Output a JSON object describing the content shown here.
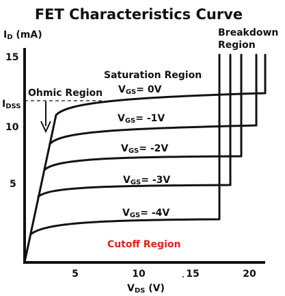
{
  "title": "FET Characteristics Curve",
  "y_axis": {
    "main": "I",
    "sub": "D",
    "unit": " (mA)"
  },
  "x_axis": {
    "main": "V",
    "sub": "DS",
    "unit": " (V)"
  },
  "idss_label": {
    "main": "I",
    "sub": "DSS"
  },
  "regions": {
    "ohmic": "Ohmic Region",
    "saturation": "Saturation Region",
    "breakdown_line1": "Breakdown",
    "breakdown_line2": "Region",
    "cutoff": "Cutoff Region"
  },
  "colors": {
    "cutoff": "#e02020",
    "ink": "#111111"
  },
  "y_ticks": [
    "15",
    "10",
    "5"
  ],
  "x_ticks": [
    "5",
    "10",
    "15",
    "20"
  ],
  "curves": [
    {
      "prefix": "V",
      "sub": "GS",
      "value": "= 0V",
      "current_ma": 12.3,
      "breakdown_v": 21.5
    },
    {
      "prefix": "V",
      "sub": "GS",
      "value": "= -1V",
      "current_ma": 10.3,
      "breakdown_v": 20.5
    },
    {
      "prefix": "V",
      "sub": "GS",
      "value": "= -2V",
      "current_ma": 8.3,
      "breakdown_v": 19.3
    },
    {
      "prefix": "V",
      "sub": "GS",
      "value": "= -3V",
      "current_ma": 6.4,
      "breakdown_v": 18.4
    },
    {
      "prefix": "V",
      "sub": "GS",
      "value": "= -4V",
      "current_ma": 3.2,
      "breakdown_v": 17.5
    }
  ]
}
